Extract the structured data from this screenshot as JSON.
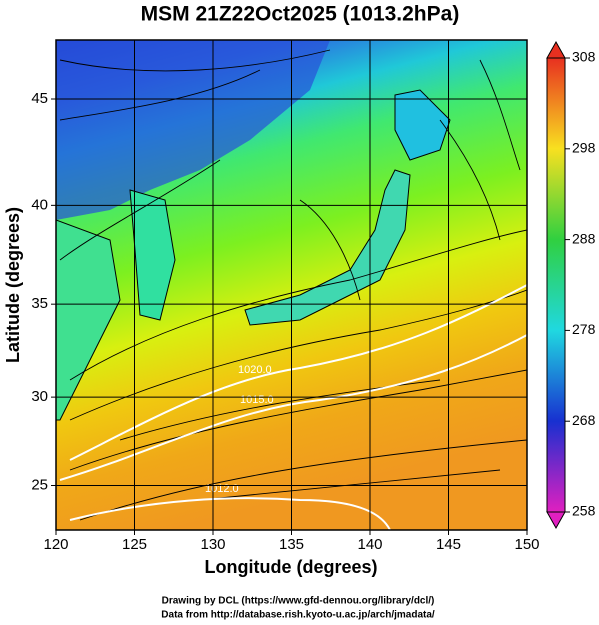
{
  "title": "MSM 21Z22Oct2025 (1013.2hPa)",
  "x_label": "Longitude (degrees)",
  "y_label": "Latitude  (degrees)",
  "xlim": [
    120,
    150
  ],
  "ylim": [
    22.4,
    47.6
  ],
  "xticks": [
    120,
    125,
    130,
    135,
    140,
    145,
    150
  ],
  "yticks": [
    25,
    30,
    35,
    40,
    45
  ],
  "colorbar": {
    "lim": [
      258,
      308
    ],
    "ticks": [
      258,
      268,
      278,
      288,
      298,
      308
    ]
  },
  "contour_labels": [
    "1020.0",
    "1015.0",
    "1012.0"
  ],
  "credits": [
    "Drawing by DCL (https://www.gfd-dennou.org/library/dcl/)",
    "Data from http://database.rish.kyoto-u.ac.jp/arch/jmadata/"
  ]
}
